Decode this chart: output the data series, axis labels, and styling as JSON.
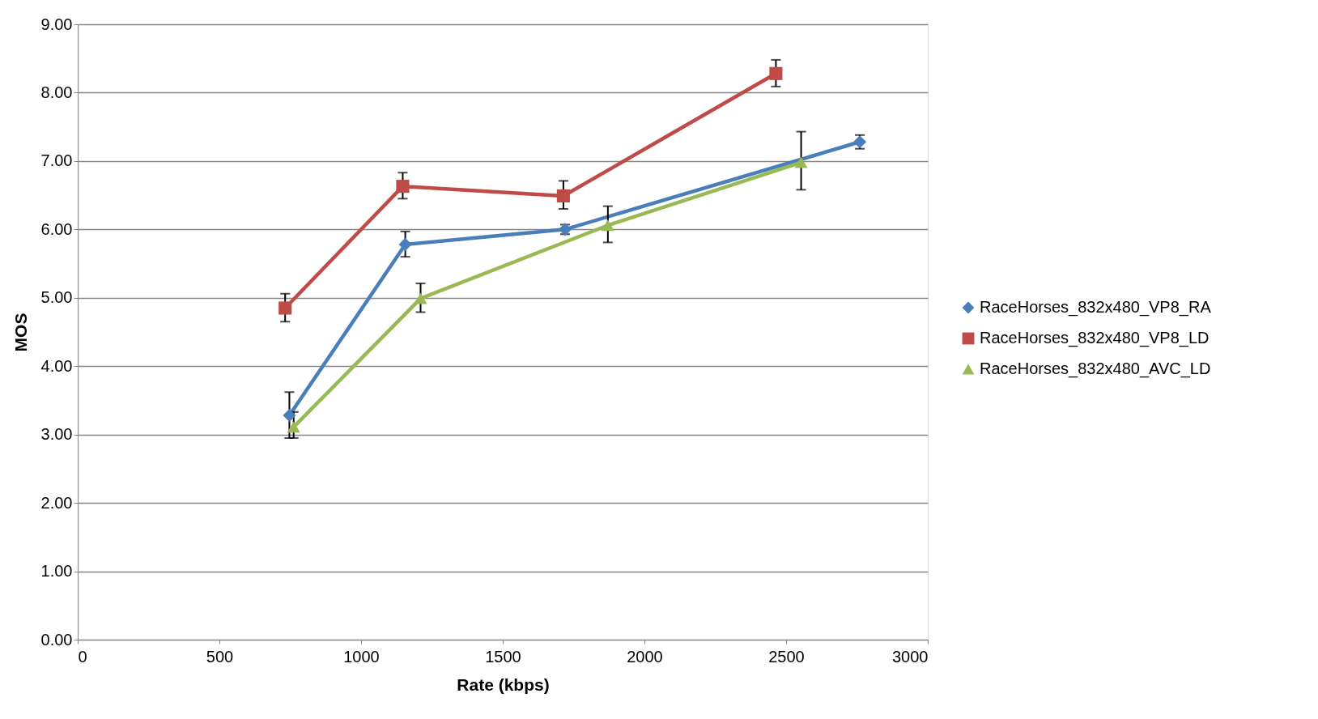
{
  "chart_data": {
    "type": "line",
    "xlabel": "Rate (kbps)",
    "ylabel": "MOS",
    "xlim": [
      0,
      3000
    ],
    "xticks": [
      0,
      500,
      1000,
      1500,
      2000,
      2500,
      3000
    ],
    "ylim": [
      0,
      9
    ],
    "yticks": [
      {
        "value": 0,
        "label": "0.00"
      },
      {
        "value": 1,
        "label": "1.00"
      },
      {
        "value": 2,
        "label": "2.00"
      },
      {
        "value": 3,
        "label": "3.00"
      },
      {
        "value": 4,
        "label": "4.00"
      },
      {
        "value": 5,
        "label": "5.00"
      },
      {
        "value": 6,
        "label": "6.00"
      },
      {
        "value": 7,
        "label": "7.00"
      },
      {
        "value": 8,
        "label": "8.00"
      },
      {
        "value": 9,
        "label": "9.00"
      }
    ],
    "grid": "y",
    "legend": "right",
    "line_style": "solid",
    "series": [
      {
        "name": "RaceHorses_832x480_VP8_RA",
        "color": "#4a7ebb",
        "marker": "diamond",
        "x": [
          747,
          1156,
          1720,
          2760
        ],
        "values": [
          3.28,
          5.78,
          6.0,
          7.28
        ],
        "errors": [
          [
            2.95,
            3.62
          ],
          [
            5.6,
            5.97
          ],
          [
            5.93,
            6.07
          ],
          [
            7.18,
            7.38
          ]
        ]
      },
      {
        "name": "RaceHorses_832x480_VP8_LD",
        "color": "#be4b48",
        "marker": "square",
        "x": [
          732,
          1147,
          1714,
          2464
        ],
        "values": [
          4.85,
          6.63,
          6.49,
          8.28
        ],
        "errors": [
          [
            4.65,
            5.06
          ],
          [
            6.45,
            6.83
          ],
          [
            6.3,
            6.71
          ],
          [
            8.09,
            8.48
          ]
        ]
      },
      {
        "name": "RaceHorses_832x480_AVC_LD",
        "color": "#98b954",
        "marker": "triangle",
        "x": [
          762,
          1210,
          1871,
          2553
        ],
        "values": [
          3.11,
          4.99,
          6.06,
          6.98
        ],
        "errors": [
          [
            2.95,
            3.33
          ],
          [
            4.79,
            5.21
          ],
          [
            5.81,
            6.34
          ],
          [
            6.58,
            7.43
          ]
        ]
      }
    ]
  }
}
